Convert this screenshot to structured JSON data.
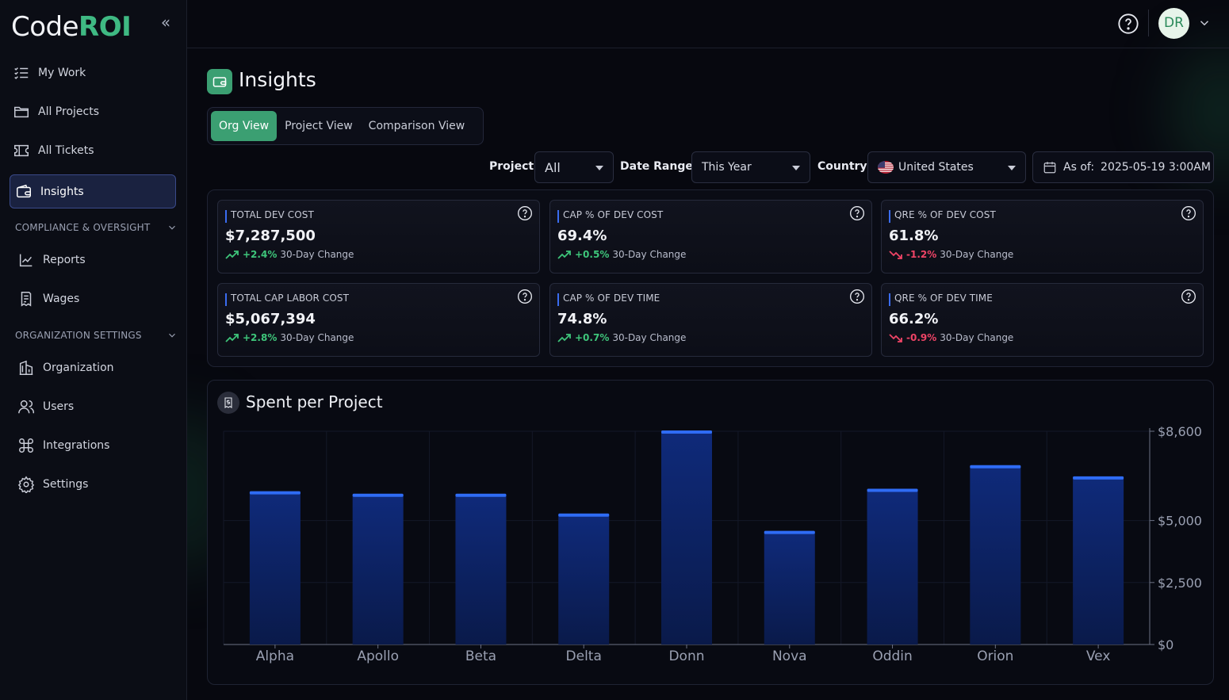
{
  "brand": {
    "name_code": "Code",
    "name_roi": "ROI"
  },
  "sidebar": {
    "items": [
      {
        "label": "My Work",
        "icon": "list-check-icon"
      },
      {
        "label": "All Projects",
        "icon": "folder-icon"
      },
      {
        "label": "All Tickets",
        "icon": "ticket-icon"
      },
      {
        "label": "Insights",
        "icon": "wallet-icon",
        "active": true
      }
    ],
    "compliance": {
      "heading": "COMPLIANCE & OVERSIGHT",
      "items": [
        {
          "label": "Reports",
          "icon": "chart-line-icon"
        },
        {
          "label": "Wages",
          "icon": "receipt-icon"
        }
      ]
    },
    "org_settings": {
      "heading": "ORGANIZATION SETTINGS",
      "items": [
        {
          "label": "Organization",
          "icon": "building-icon"
        },
        {
          "label": "Users",
          "icon": "users-icon"
        },
        {
          "label": "Integrations",
          "icon": "command-icon"
        },
        {
          "label": "Settings",
          "icon": "gear-icon"
        }
      ]
    }
  },
  "topbar": {
    "avatar_initials": "DR"
  },
  "page": {
    "title": "Insights"
  },
  "tabs": [
    {
      "label": "Org View",
      "active": true
    },
    {
      "label": "Project View",
      "active": false
    },
    {
      "label": "Comparison View",
      "active": false
    }
  ],
  "filters": {
    "project_label": "Project",
    "project_value": "All",
    "date_label": "Date Range",
    "date_value": "This Year",
    "country_label": "Country",
    "country_value": "United States",
    "as_of_label": "As of:",
    "as_of_value": "2025-05-19 3:00AM"
  },
  "kpis": [
    {
      "label": "TOTAL DEV COST",
      "value": "$7,287,500",
      "change": "+2.4%",
      "direction": "up",
      "change_label": "30-Day Change"
    },
    {
      "label": "CAP % OF DEV COST",
      "value": "69.4%",
      "change": "+0.5%",
      "direction": "up",
      "change_label": "30-Day Change"
    },
    {
      "label": "QRE % OF DEV COST",
      "value": "61.8%",
      "change": "-1.2%",
      "direction": "down",
      "change_label": "30-Day Change"
    },
    {
      "label": "TOTAL CAP LABOR COST",
      "value": "$5,067,394",
      "change": "+2.8%",
      "direction": "up",
      "change_label": "30-Day Change"
    },
    {
      "label": "CAP % OF DEV TIME",
      "value": "74.8%",
      "change": "+0.7%",
      "direction": "up",
      "change_label": "30-Day Change"
    },
    {
      "label": "QRE % OF DEV TIME",
      "value": "66.2%",
      "change": "-0.9%",
      "direction": "down",
      "change_label": "30-Day Change"
    }
  ],
  "colors": {
    "accent": "#3b9f72",
    "bar": "#0f2a7a",
    "bar_top": "#2f6cf5",
    "up": "#3ec57a",
    "down": "#ef4466"
  },
  "chart_title": "Spent per Project",
  "chart_data": {
    "type": "bar",
    "title": "Spent per Project",
    "categories": [
      "Alpha",
      "Apollo",
      "Beta",
      "Delta",
      "Donn",
      "Nova",
      "Oddin",
      "Orion",
      "Vex"
    ],
    "values": [
      6150,
      6050,
      6050,
      5250,
      8600,
      4550,
      6250,
      7200,
      6750
    ],
    "y_ticks": [
      {
        "value": 0,
        "label": "$0"
      },
      {
        "value": 2500,
        "label": "$2,500"
      },
      {
        "value": 5000,
        "label": "$5,000"
      },
      {
        "value": 8600,
        "label": "$8,600"
      }
    ],
    "ylim": [
      0,
      8600
    ],
    "y_axis_position": "right",
    "grid": true
  }
}
